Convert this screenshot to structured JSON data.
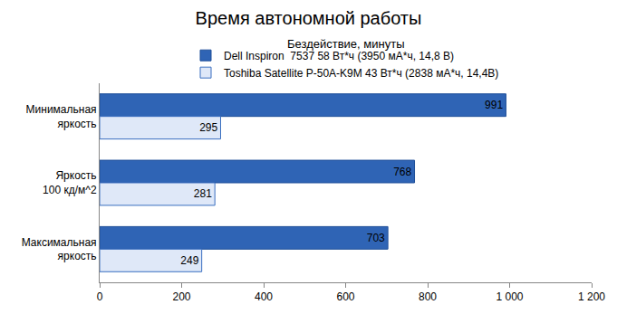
{
  "chart_data": {
    "type": "bar",
    "orientation": "horizontal",
    "title": "Время автономной работы",
    "subtitle": "Бездействие, минуты",
    "categories": [
      "Минимальная яркость",
      "Яркость 100 кд/м^2",
      "Максимальная яркость"
    ],
    "series": [
      {
        "name": "Dell Inspiron  7537 58 Вт*ч (3950 мА*ч, 14,8 В)",
        "color": "#2f64b5",
        "values": [
          991,
          768,
          703
        ]
      },
      {
        "name": "Toshiba Satellite P-50A-K9M 43 Вт*ч (2838 мА*ч, 14,4В)",
        "color": "#dfe8f8",
        "values": [
          295,
          281,
          249
        ]
      }
    ],
    "xlim": [
      0,
      1200
    ],
    "xticks": [
      0,
      200,
      400,
      600,
      800,
      {
        "value": 1000,
        "label": "1 000"
      },
      {
        "value": 1200,
        "label": "1 200"
      }
    ],
    "grid": false,
    "legend": "top",
    "data_labels": true
  }
}
